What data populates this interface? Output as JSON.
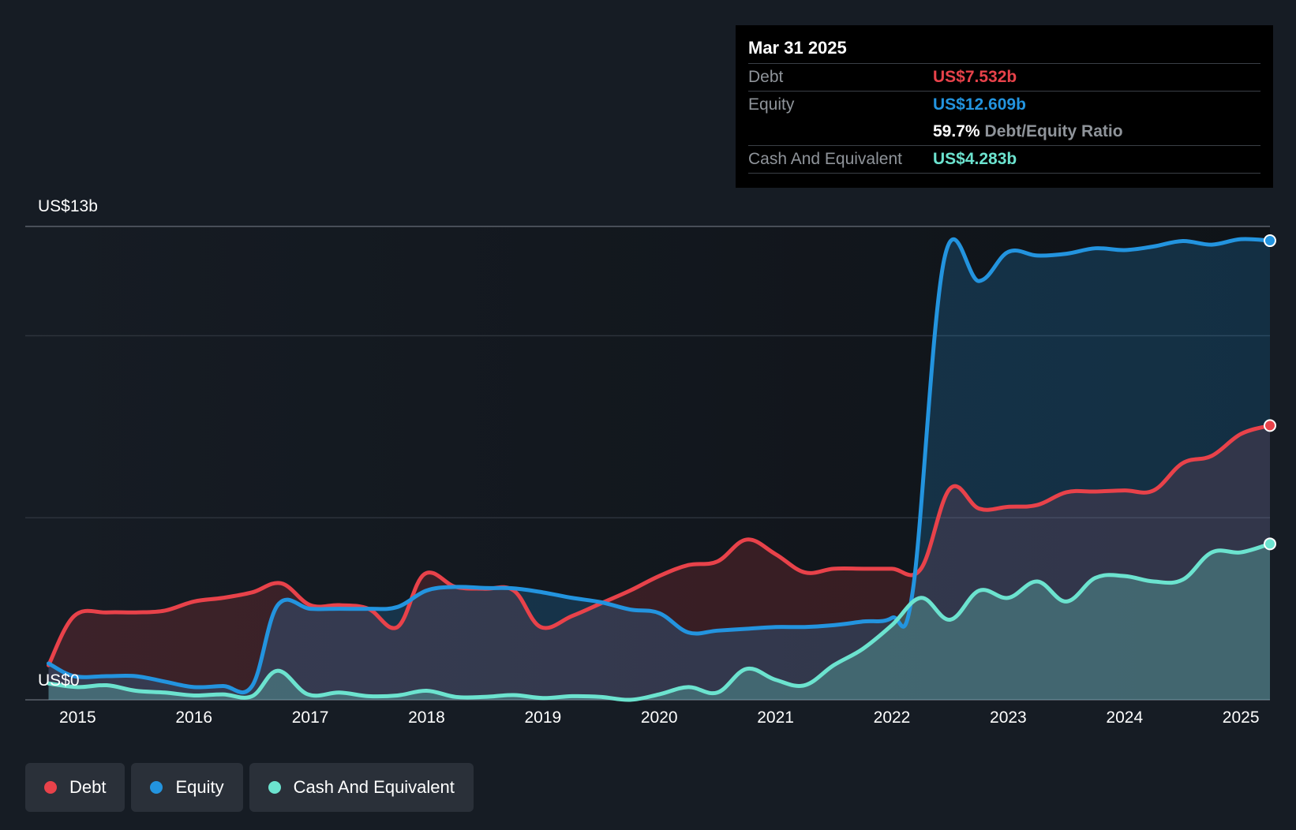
{
  "colors": {
    "background": "#161c24",
    "debt": "#e8424a",
    "equity": "#2394df",
    "cash": "#6ce3cf",
    "grid": "#3a4049"
  },
  "tooltip": {
    "date": "Mar 31 2025",
    "debt_label": "Debt",
    "debt_value": "US$7.532b",
    "equity_label": "Equity",
    "equity_value": "US$12.609b",
    "ratio_value": "59.7%",
    "ratio_label": "Debt/Equity Ratio",
    "cash_label": "Cash And Equivalent",
    "cash_value": "US$4.283b"
  },
  "legend": [
    {
      "label": "Debt",
      "color": "#e8424a",
      "icon": "dot-icon"
    },
    {
      "label": "Equity",
      "color": "#2394df",
      "icon": "dot-icon"
    },
    {
      "label": "Cash And Equivalent",
      "color": "#6ce3cf",
      "icon": "dot-icon"
    }
  ],
  "chart_data": {
    "type": "area",
    "y_top_label": "US$13b",
    "y_bottom_label": "US$0",
    "ylim": [
      0,
      13
    ],
    "xlim": [
      2014.55,
      2025.25
    ],
    "x_ticks": [
      "2015",
      "2016",
      "2017",
      "2018",
      "2019",
      "2020",
      "2021",
      "2022",
      "2023",
      "2024",
      "2025"
    ],
    "grid": true,
    "series": [
      {
        "name": "Debt",
        "points": [
          [
            2014.75,
            0.95
          ],
          [
            2014.97,
            2.3
          ],
          [
            2015.25,
            2.4
          ],
          [
            2015.5,
            2.4
          ],
          [
            2015.75,
            2.45
          ],
          [
            2016.0,
            2.7
          ],
          [
            2016.25,
            2.8
          ],
          [
            2016.5,
            2.95
          ],
          [
            2016.75,
            3.2
          ],
          [
            2017.0,
            2.6
          ],
          [
            2017.25,
            2.6
          ],
          [
            2017.5,
            2.5
          ],
          [
            2017.75,
            2.0
          ],
          [
            2017.98,
            3.45
          ],
          [
            2018.25,
            3.1
          ],
          [
            2018.5,
            3.05
          ],
          [
            2018.75,
            3.0
          ],
          [
            2018.98,
            2.0
          ],
          [
            2019.25,
            2.3
          ],
          [
            2019.5,
            2.65
          ],
          [
            2019.75,
            3.0
          ],
          [
            2020.0,
            3.4
          ],
          [
            2020.25,
            3.7
          ],
          [
            2020.5,
            3.8
          ],
          [
            2020.75,
            4.4
          ],
          [
            2021.0,
            4.0
          ],
          [
            2021.25,
            3.5
          ],
          [
            2021.5,
            3.6
          ],
          [
            2021.75,
            3.6
          ],
          [
            2022.0,
            3.6
          ],
          [
            2022.25,
            3.6
          ],
          [
            2022.5,
            5.8
          ],
          [
            2022.75,
            5.25
          ],
          [
            2023.0,
            5.3
          ],
          [
            2023.25,
            5.35
          ],
          [
            2023.5,
            5.7
          ],
          [
            2023.75,
            5.72
          ],
          [
            2024.0,
            5.75
          ],
          [
            2024.25,
            5.75
          ],
          [
            2024.5,
            6.5
          ],
          [
            2024.75,
            6.7
          ],
          [
            2025.0,
            7.3
          ],
          [
            2025.25,
            7.532
          ]
        ]
      },
      {
        "name": "Equity",
        "points": [
          [
            2014.75,
            1.0
          ],
          [
            2014.97,
            0.65
          ],
          [
            2015.25,
            0.65
          ],
          [
            2015.5,
            0.65
          ],
          [
            2015.75,
            0.5
          ],
          [
            2016.0,
            0.35
          ],
          [
            2016.25,
            0.38
          ],
          [
            2016.5,
            0.38
          ],
          [
            2016.72,
            2.6
          ],
          [
            2017.0,
            2.5
          ],
          [
            2017.25,
            2.5
          ],
          [
            2017.5,
            2.5
          ],
          [
            2017.75,
            2.55
          ],
          [
            2018.0,
            3.0
          ],
          [
            2018.25,
            3.1
          ],
          [
            2018.5,
            3.07
          ],
          [
            2018.75,
            3.06
          ],
          [
            2019.0,
            2.95
          ],
          [
            2019.25,
            2.8
          ],
          [
            2019.5,
            2.68
          ],
          [
            2019.75,
            2.48
          ],
          [
            2020.0,
            2.38
          ],
          [
            2020.25,
            1.85
          ],
          [
            2020.5,
            1.9
          ],
          [
            2020.75,
            1.95
          ],
          [
            2021.0,
            2.0
          ],
          [
            2021.25,
            2.0
          ],
          [
            2021.5,
            2.05
          ],
          [
            2021.75,
            2.15
          ],
          [
            2022.0,
            2.25
          ],
          [
            2022.18,
            3.0
          ],
          [
            2022.45,
            12.1
          ],
          [
            2022.75,
            11.5
          ],
          [
            2023.0,
            12.3
          ],
          [
            2023.25,
            12.2
          ],
          [
            2023.5,
            12.25
          ],
          [
            2023.75,
            12.4
          ],
          [
            2024.0,
            12.35
          ],
          [
            2024.25,
            12.45
          ],
          [
            2024.5,
            12.6
          ],
          [
            2024.75,
            12.5
          ],
          [
            2025.0,
            12.65
          ],
          [
            2025.25,
            12.609
          ]
        ]
      },
      {
        "name": "Cash And Equivalent",
        "points": [
          [
            2014.75,
            0.45
          ],
          [
            2015.0,
            0.35
          ],
          [
            2015.25,
            0.4
          ],
          [
            2015.5,
            0.25
          ],
          [
            2015.75,
            0.2
          ],
          [
            2016.0,
            0.12
          ],
          [
            2016.25,
            0.15
          ],
          [
            2016.5,
            0.1
          ],
          [
            2016.72,
            0.8
          ],
          [
            2016.98,
            0.15
          ],
          [
            2017.25,
            0.2
          ],
          [
            2017.5,
            0.1
          ],
          [
            2017.75,
            0.12
          ],
          [
            2018.0,
            0.25
          ],
          [
            2018.25,
            0.08
          ],
          [
            2018.5,
            0.08
          ],
          [
            2018.75,
            0.13
          ],
          [
            2019.0,
            0.05
          ],
          [
            2019.25,
            0.1
          ],
          [
            2019.5,
            0.08
          ],
          [
            2019.75,
            0.0
          ],
          [
            2020.0,
            0.15
          ],
          [
            2020.25,
            0.35
          ],
          [
            2020.5,
            0.2
          ],
          [
            2020.75,
            0.85
          ],
          [
            2021.0,
            0.55
          ],
          [
            2021.25,
            0.4
          ],
          [
            2021.5,
            0.95
          ],
          [
            2021.75,
            1.4
          ],
          [
            2022.0,
            2.05
          ],
          [
            2022.25,
            2.8
          ],
          [
            2022.5,
            2.2
          ],
          [
            2022.75,
            3.0
          ],
          [
            2023.0,
            2.8
          ],
          [
            2023.25,
            3.25
          ],
          [
            2023.5,
            2.7
          ],
          [
            2023.75,
            3.35
          ],
          [
            2024.0,
            3.4
          ],
          [
            2024.25,
            3.25
          ],
          [
            2024.5,
            3.3
          ],
          [
            2024.75,
            4.05
          ],
          [
            2025.0,
            4.05
          ],
          [
            2025.25,
            4.283
          ]
        ]
      }
    ]
  }
}
